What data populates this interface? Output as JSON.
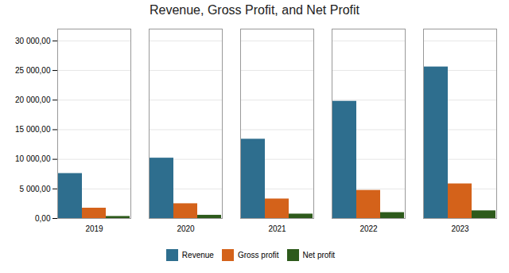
{
  "chart_data": {
    "type": "bar",
    "title": "Revenue, Gross Profit, and Net Profit",
    "categories": [
      "2019",
      "2020",
      "2021",
      "2022",
      "2023"
    ],
    "series": [
      {
        "name": "Revenue",
        "color": "#2E6E8E",
        "values": [
          7600,
          10200,
          13400,
          19800,
          25600
        ]
      },
      {
        "name": "Gross profit",
        "color": "#D4621A",
        "values": [
          1750,
          2500,
          3300,
          4750,
          5850
        ]
      },
      {
        "name": "Net profit",
        "color": "#2D5A1B",
        "values": [
          350,
          550,
          750,
          1000,
          1300
        ]
      }
    ],
    "ylim": [
      0,
      32000
    ],
    "yticks": [
      {
        "value": 0,
        "label": "0,00"
      },
      {
        "value": 5000,
        "label": "5 000,00"
      },
      {
        "value": 10000,
        "label": "10 000,00"
      },
      {
        "value": 15000,
        "label": "15 000,00"
      },
      {
        "value": 20000,
        "label": "20 000,00"
      },
      {
        "value": 25000,
        "label": "25 000,00"
      },
      {
        "value": 30000,
        "label": "30 000,00"
      }
    ],
    "grid": true,
    "legend": "bottom"
  }
}
